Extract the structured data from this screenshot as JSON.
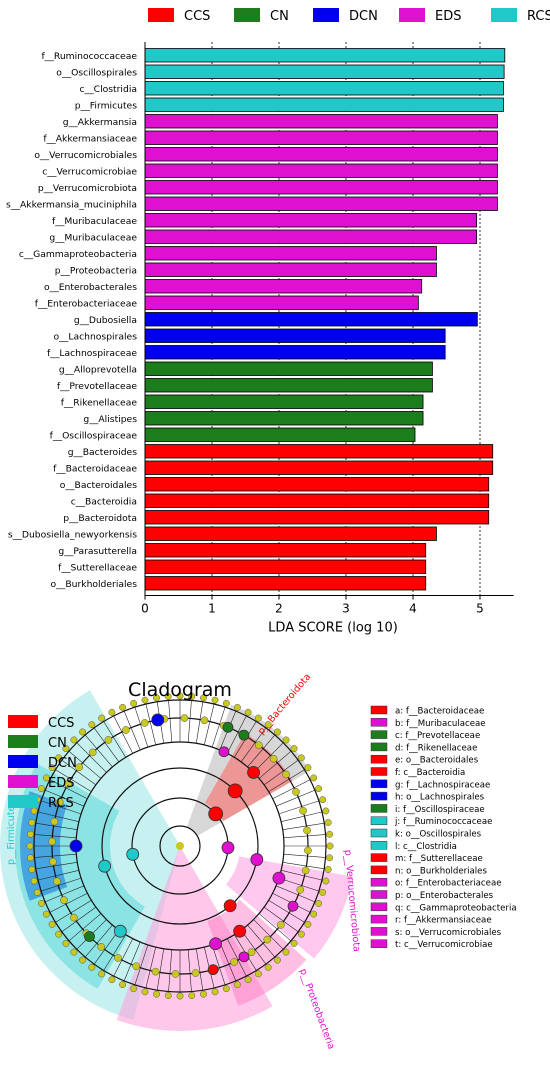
{
  "chart_data": [
    {
      "type": "bar",
      "orientation": "horizontal",
      "xlabel": "LDA SCORE (log 10)",
      "xlim": [
        0,
        5.5
      ],
      "xticks": [
        0,
        1,
        2,
        3,
        4,
        5
      ],
      "grid": "vertical dashed",
      "legend_placement": "top",
      "legend": [
        {
          "name": "CCS",
          "color": "#ff0000"
        },
        {
          "name": "CN",
          "color": "#1c7d1c"
        },
        {
          "name": "DCN",
          "color": "#0000ee"
        },
        {
          "name": "EDS",
          "color": "#e010d0"
        },
        {
          "name": "RCS",
          "color": "#20c8c8"
        }
      ],
      "categories": [
        "f__Ruminococcaceae",
        "o__Oscillospirales",
        "c__Clostridia",
        "p__Firmicutes",
        "g__Akkermansia",
        "f__Akkermansiaceae",
        "o__Verrucomicrobiales",
        "c__Verrucomicrobiae",
        "p__Verrucomicrobiota",
        "s__Akkermansia_muciniphila",
        "f__Muribaculaceae",
        "g__Muribaculaceae",
        "c__Gammaproteobacteria",
        "p__Proteobacteria",
        "o__Enterobacterales",
        "f__Enterobacteriaceae",
        "g__Dubosiella",
        "o__Lachnospirales",
        "f__Lachnospiraceae",
        "g__Alloprevotella",
        "f__Prevotellaceae",
        "f__Rikenellaceae",
        "g__Alistipes",
        "f__Oscillospiraceae",
        "g__Bacteroides",
        "f__Bacteroidaceae",
        "o__Bacteroidales",
        "c__Bacteroidia",
        "p__Bacteroidota",
        "s__Dubosiella_newyorkensis",
        "g__Parasutterella",
        "f__Sutterellaceae",
        "o__Burkholderiales"
      ],
      "values": [
        5.37,
        5.36,
        5.35,
        5.35,
        5.26,
        5.26,
        5.26,
        5.26,
        5.26,
        5.26,
        4.95,
        4.95,
        4.35,
        4.35,
        4.13,
        4.08,
        4.96,
        4.48,
        4.48,
        4.29,
        4.29,
        4.15,
        4.15,
        4.03,
        5.19,
        5.19,
        5.13,
        5.13,
        5.13,
        4.35,
        4.19,
        4.19,
        4.19
      ],
      "groups": [
        "RCS",
        "RCS",
        "RCS",
        "RCS",
        "EDS",
        "EDS",
        "EDS",
        "EDS",
        "EDS",
        "EDS",
        "EDS",
        "EDS",
        "EDS",
        "EDS",
        "EDS",
        "EDS",
        "DCN",
        "DCN",
        "DCN",
        "CN",
        "CN",
        "CN",
        "CN",
        "CN",
        "CCS",
        "CCS",
        "CCS",
        "CCS",
        "CCS",
        "CCS",
        "CCS",
        "CCS",
        "CCS"
      ]
    },
    {
      "type": "cladogram",
      "title": "Cladogram",
      "legend_groups": [
        {
          "name": "CCS",
          "color": "#ff0000"
        },
        {
          "name": "CN",
          "color": "#1c7d1c"
        },
        {
          "name": "DCN",
          "color": "#0000ee"
        },
        {
          "name": "EDS",
          "color": "#e010d0"
        },
        {
          "name": "RCS",
          "color": "#20c8c8"
        }
      ],
      "key": [
        {
          "text": "a: f__Bacteroidaceae",
          "group": "CCS"
        },
        {
          "text": "b: f__Muribaculaceae",
          "group": "EDS"
        },
        {
          "text": "c: f__Prevotellaceae",
          "group": "CN"
        },
        {
          "text": "d: f__Rikenellaceae",
          "group": "CN"
        },
        {
          "text": "e: o__Bacteroidales",
          "group": "CCS"
        },
        {
          "text": "f: c__Bacteroidia",
          "group": "CCS"
        },
        {
          "text": "g: f__Lachnospiraceae",
          "group": "DCN"
        },
        {
          "text": "h: o__Lachnospirales",
          "group": "DCN"
        },
        {
          "text": "i: f__Oscillospiraceae",
          "group": "CN"
        },
        {
          "text": "j: f__Ruminococcaceae",
          "group": "RCS"
        },
        {
          "text": "k: o__Oscillospirales",
          "group": "RCS"
        },
        {
          "text": "l: c__Clostridia",
          "group": "RCS"
        },
        {
          "text": "m: f__Sutterellaceae",
          "group": "CCS"
        },
        {
          "text": "n: o__Burkholderiales",
          "group": "CCS"
        },
        {
          "text": "o: f__Enterobacteriaceae",
          "group": "EDS"
        },
        {
          "text": "p: o__Enterobacterales",
          "group": "EDS"
        },
        {
          "text": "q: c__Gammaproteobacteria",
          "group": "EDS"
        },
        {
          "text": "r: f__Akkermansiaceae",
          "group": "EDS"
        },
        {
          "text": "s: o__Verrucomicrobiales",
          "group": "EDS"
        },
        {
          "text": "t: c__Verrucomicrobiae",
          "group": "EDS"
        }
      ],
      "clade_labels": [
        {
          "text": "p__Bacteroidota",
          "group": "CCS"
        },
        {
          "text": "p__Verrucomicrobiota",
          "group": "EDS"
        },
        {
          "text": "p__Proteobacteria",
          "group": "EDS"
        },
        {
          "text": "p__Firmicutes",
          "group": "RCS"
        }
      ]
    }
  ]
}
